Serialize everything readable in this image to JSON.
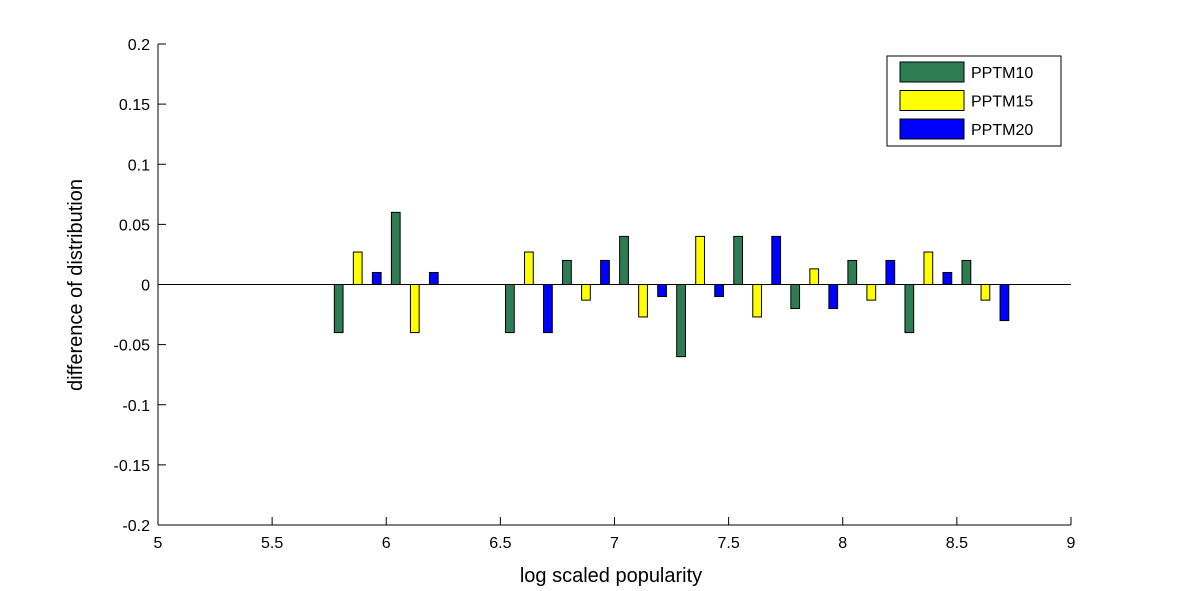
{
  "chart_data": {
    "type": "bar",
    "title": "",
    "xlabel": "log scaled popularity",
    "ylabel": "difference of distribution",
    "xlim": [
      5,
      9
    ],
    "ylim": [
      -0.2,
      0.2
    ],
    "x_ticks": [
      5,
      5.5,
      6,
      6.5,
      7,
      7.5,
      8,
      8.5,
      9
    ],
    "x_tick_labels": [
      "5",
      "5.5",
      "6",
      "6.5",
      "7",
      "7.5",
      "8",
      "8.5",
      "9"
    ],
    "y_ticks": [
      -0.2,
      -0.15,
      -0.1,
      -0.05,
      0,
      0.05,
      0.1,
      0.15,
      0.2
    ],
    "y_tick_labels": [
      "-0.2",
      "-0.15",
      "-0.1",
      "-0.05",
      "0",
      "0.05",
      "0.1",
      "0.15",
      "0.2"
    ],
    "grid": false,
    "legend_position": "top-right",
    "x": [
      5.875,
      6.125,
      6.625,
      6.875,
      7.125,
      7.375,
      7.625,
      7.875,
      8.125,
      8.375,
      8.625
    ],
    "series": [
      {
        "name": "PPTM10",
        "color": "#2e7d52",
        "values": [
          -0.04,
          0.06,
          -0.04,
          0.02,
          0.04,
          -0.06,
          0.04,
          -0.02,
          0.02,
          -0.04,
          0.02
        ]
      },
      {
        "name": "PPTM15",
        "color": "#ffff00",
        "values": [
          0.027,
          -0.04,
          0.027,
          -0.013,
          -0.027,
          0.04,
          -0.027,
          0.013,
          -0.013,
          0.027,
          -0.013
        ]
      },
      {
        "name": "PPTM20",
        "color": "#0000ff",
        "values": [
          0.01,
          0.01,
          -0.04,
          0.02,
          -0.01,
          -0.01,
          0.04,
          -0.02,
          0.02,
          0.01,
          -0.03
        ]
      }
    ]
  }
}
